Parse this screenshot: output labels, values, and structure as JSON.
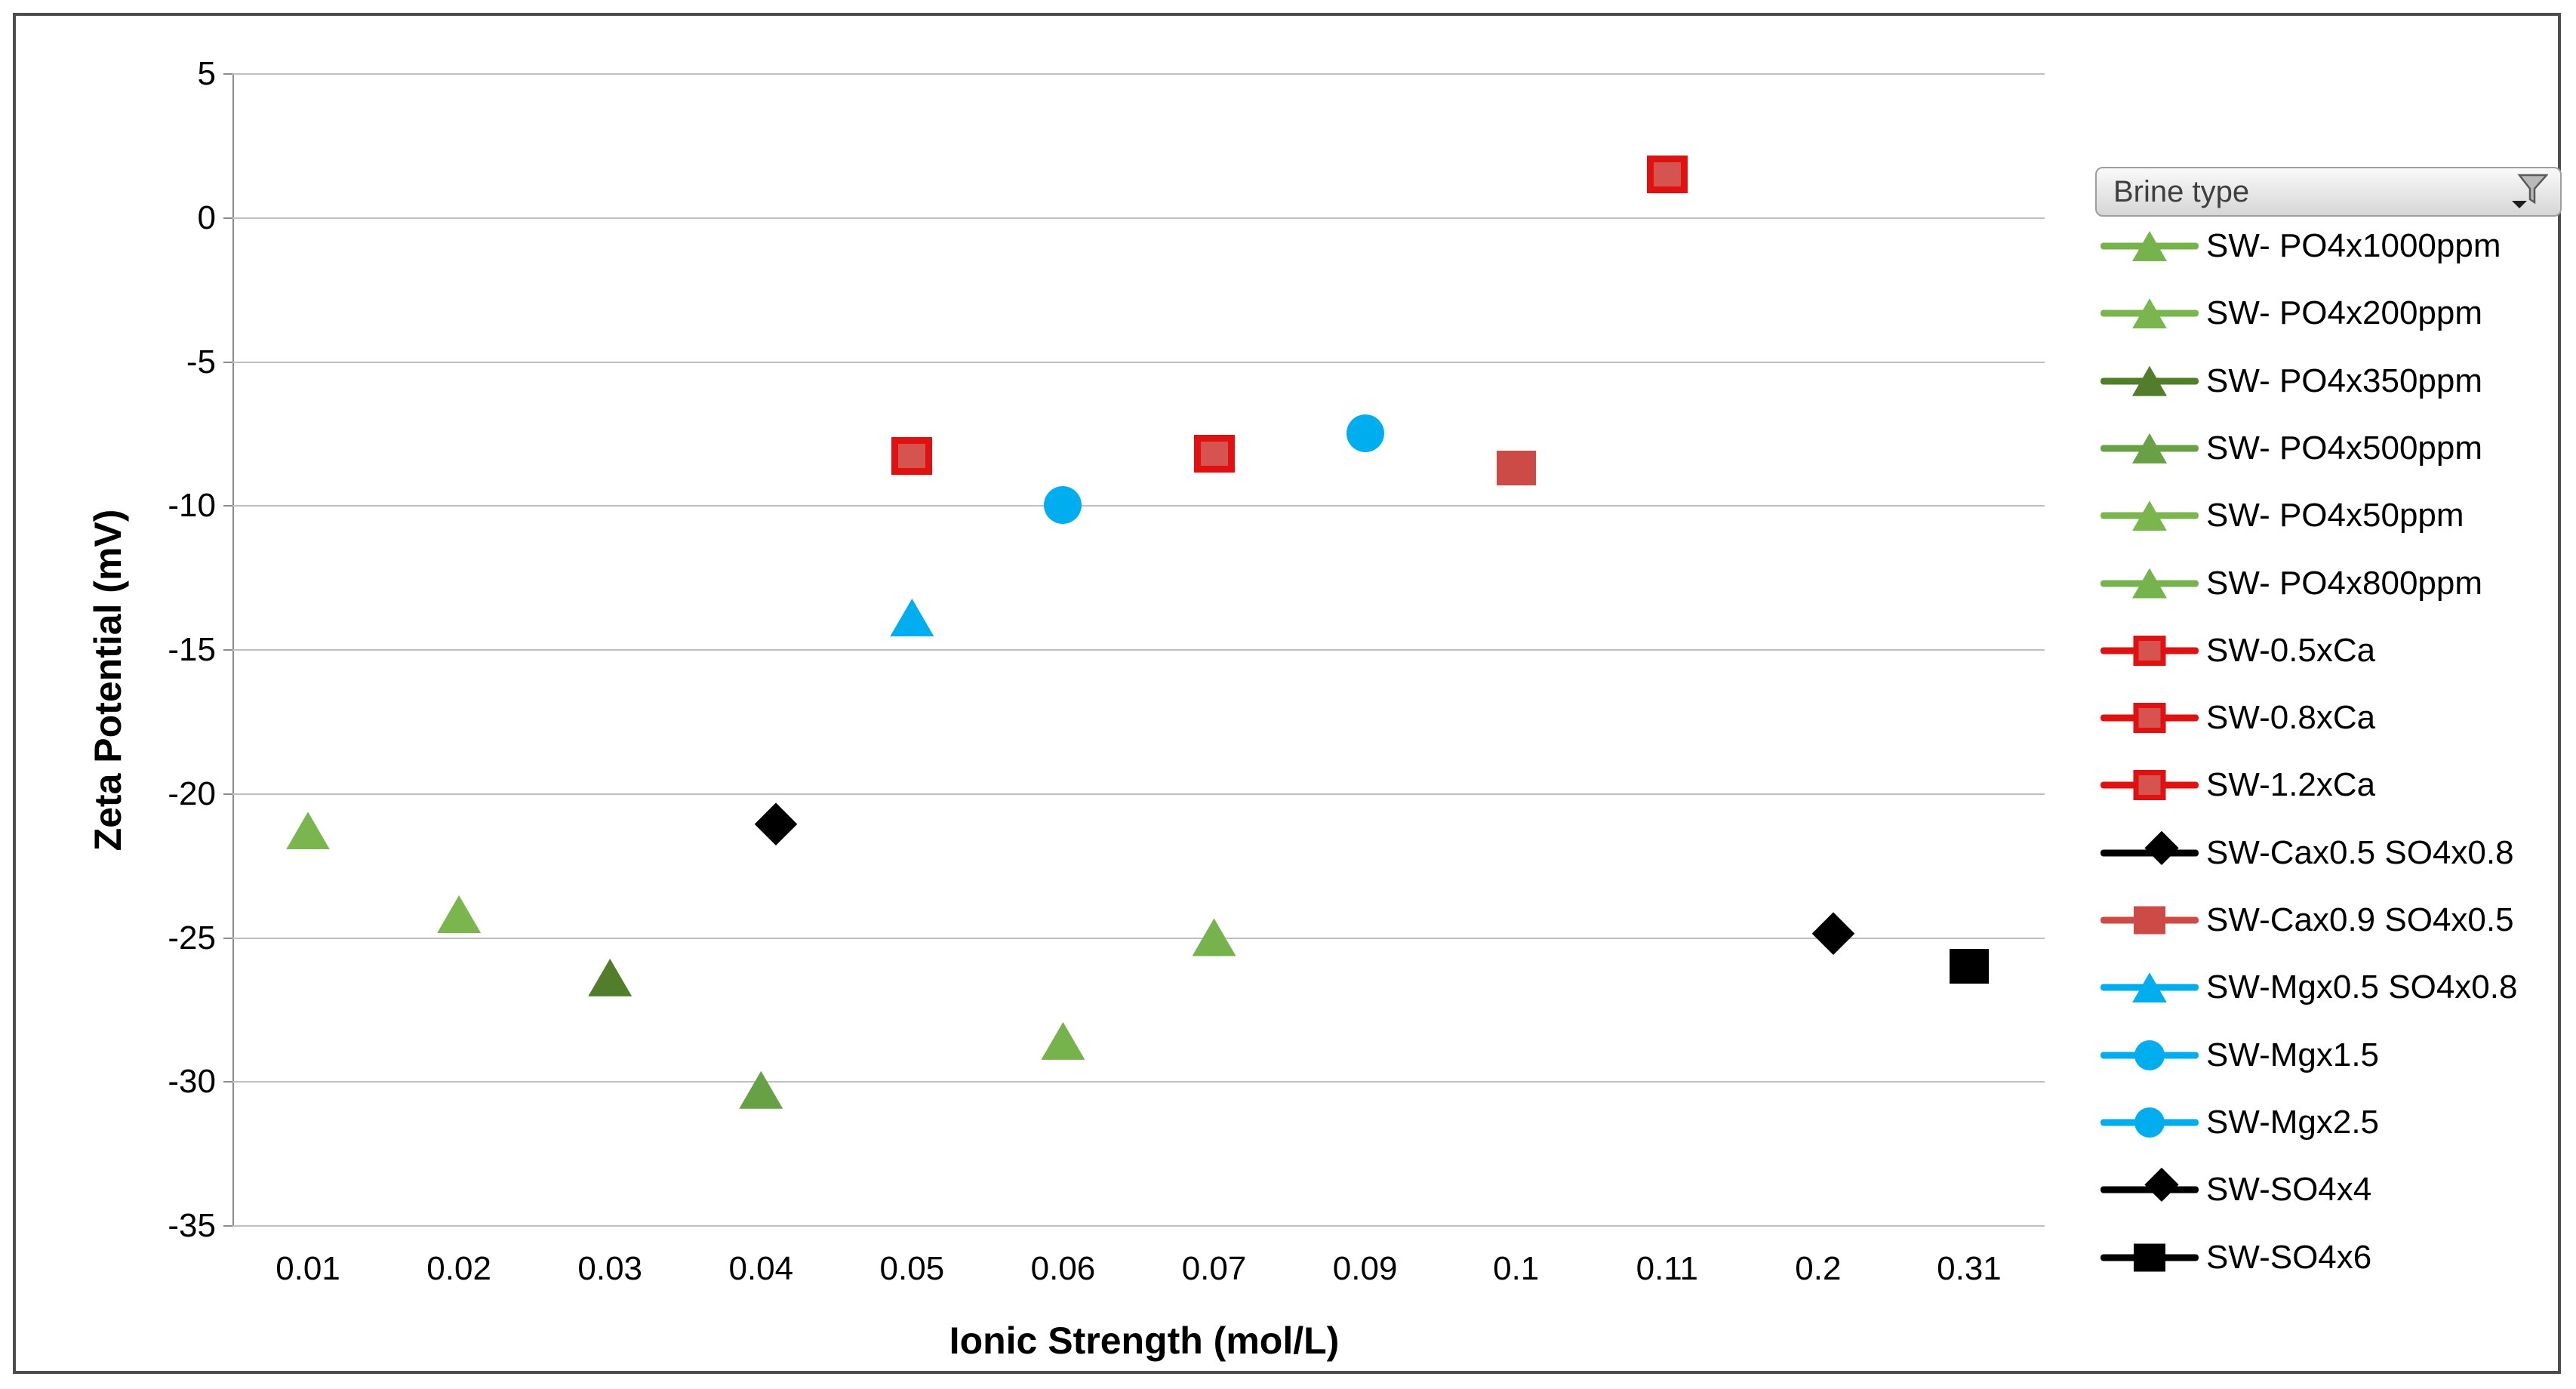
{
  "window": {
    "background_color": "#ffffff",
    "frame_border_color": "#4d4d4d"
  },
  "icons": {
    "legend_filter": "funnel-filter-icon"
  },
  "legend": {
    "header_label": "Brine type"
  },
  "chart_data": {
    "type": "scatter",
    "title": "",
    "xlabel": "Ionic Strength (mol/L)",
    "ylabel": "Zeta Potential (mV)",
    "x_categories": [
      "0.01",
      "0.02",
      "0.03",
      "0.04",
      "0.05",
      "0.06",
      "0.07",
      "0.09",
      "0.1",
      "0.11",
      "0.2",
      "0.31"
    ],
    "y_ticks": [
      5,
      0,
      -5,
      -10,
      -15,
      -20,
      -25,
      -30,
      -35
    ],
    "ylim": [
      -35,
      5
    ],
    "grid": true,
    "legend_position": "right",
    "legend_title": "Brine type",
    "colors": {
      "green_light": "#77b34c",
      "green_mid": "#68a145",
      "green_dark": "#527e2c",
      "red_border": "#e01111",
      "red_fill": "#d6544f",
      "salmon": "#cd4b47",
      "cyan": "#00aeef",
      "black": "#000000",
      "gridline": "#bfbfbf",
      "axis": "#8c8c8c"
    },
    "series": [
      {
        "name": "SW- PO4x1000ppm",
        "marker": "triangle",
        "color": "#77b34c",
        "points": [
          [
            "0.07",
            -25.0
          ]
        ]
      },
      {
        "name": "SW- PO4x200ppm",
        "marker": "triangle",
        "color": "#7ab54e",
        "points": [
          [
            "0.02",
            -24.2
          ]
        ]
      },
      {
        "name": "SW- PO4x350ppm",
        "marker": "triangle",
        "color": "#527e2c",
        "points": [
          [
            "0.03",
            -26.4
          ]
        ]
      },
      {
        "name": "SW- PO4x500ppm",
        "marker": "triangle",
        "color": "#68a145",
        "points": [
          [
            "0.04",
            -30.3
          ]
        ]
      },
      {
        "name": "SW- PO4x50ppm",
        "marker": "triangle",
        "color": "#7ab54e",
        "points": [
          [
            "0.01",
            -21.3
          ]
        ]
      },
      {
        "name": "SW- PO4x800ppm",
        "marker": "triangle",
        "color": "#77b34c",
        "points": [
          [
            "0.06",
            -28.6
          ]
        ]
      },
      {
        "name": "SW-0.5xCa",
        "marker": "square",
        "color": "#d6544f",
        "border_color": "#e01111",
        "points": [
          [
            "0.05",
            -8.3
          ]
        ]
      },
      {
        "name": "SW-0.8xCa",
        "marker": "square",
        "color": "#d6544f",
        "border_color": "#e01111",
        "points": [
          [
            "0.07",
            -8.2
          ]
        ]
      },
      {
        "name": "SW-1.2xCa",
        "marker": "square",
        "color": "#d6544f",
        "border_color": "#e01111",
        "points": [
          [
            "0.11",
            1.5
          ]
        ]
      },
      {
        "name": "SW-Cax0.5 SO4x0.8",
        "marker": "diamond",
        "color": "#000000",
        "points": [
          [
            "0.04",
            -21.3
          ]
        ]
      },
      {
        "name": "SW-Cax0.9 SO4x0.5",
        "marker": "square",
        "color": "#cd4b47",
        "points": [
          [
            "0.1",
            -8.7
          ]
        ]
      },
      {
        "name": "SW-Mgx0.5 SO4x0.8",
        "marker": "triangle",
        "color": "#00aeef",
        "points": [
          [
            "0.05",
            -13.9
          ]
        ]
      },
      {
        "name": "SW-Mgx1.5",
        "marker": "circle",
        "color": "#00aeef",
        "points": [
          [
            "0.06",
            -10.0
          ]
        ]
      },
      {
        "name": "SW-Mgx2.5",
        "marker": "circle",
        "color": "#00aeef",
        "points": [
          [
            "0.09",
            -7.5
          ]
        ]
      },
      {
        "name": "SW-SO4x4",
        "marker": "diamond",
        "color": "#000000",
        "points": [
          [
            "0.2",
            -25.1
          ]
        ]
      },
      {
        "name": "SW-SO4x6",
        "marker": "square",
        "color": "#000000",
        "points": [
          [
            "0.31",
            -26.0
          ]
        ]
      }
    ]
  }
}
